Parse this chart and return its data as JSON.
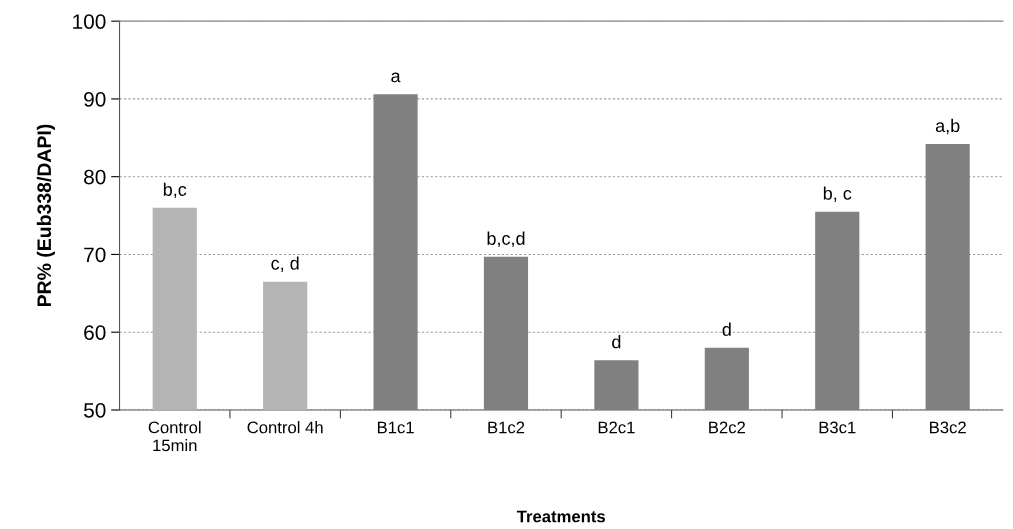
{
  "chart_data": {
    "type": "bar",
    "xlabel": "Treatments",
    "ylabel": "PR% (Eub338/DAPI)",
    "categories": [
      "Control\n15min",
      "Control 4h",
      "B1c1",
      "B1c2",
      "B2c1",
      "B2c2",
      "B3c1",
      "B3c2"
    ],
    "values": [
      76.0,
      66.5,
      90.6,
      69.7,
      56.4,
      58.0,
      75.5,
      84.2
    ],
    "colors": [
      "#b4b4b4",
      "#b4b4b4",
      "#808080",
      "#808080",
      "#808080",
      "#808080",
      "#808080",
      "#808080"
    ],
    "ylim": [
      50,
      100
    ],
    "yticks": [
      50,
      60,
      70,
      80,
      90,
      100
    ],
    "grid": "y",
    "legend": false,
    "annotations": [
      {
        "text": "b,c",
        "x": "Control\n15min",
        "y": 76.0
      },
      {
        "text": "c, d",
        "x": "Control 4h",
        "y": 66.5
      },
      {
        "text": "a",
        "x": "B1c1",
        "y": 90.6
      },
      {
        "text": "b,c,d",
        "x": "B1c2",
        "y": 69.7
      },
      {
        "text": "d",
        "x": "B2c1",
        "y": 56.4
      },
      {
        "text": "d",
        "x": "B2c2",
        "y": 58.0
      },
      {
        "text": "b, c",
        "x": "B3c1",
        "y": 75.5
      },
      {
        "text": "a,b",
        "x": "B3c2",
        "y": 84.2
      }
    ]
  }
}
